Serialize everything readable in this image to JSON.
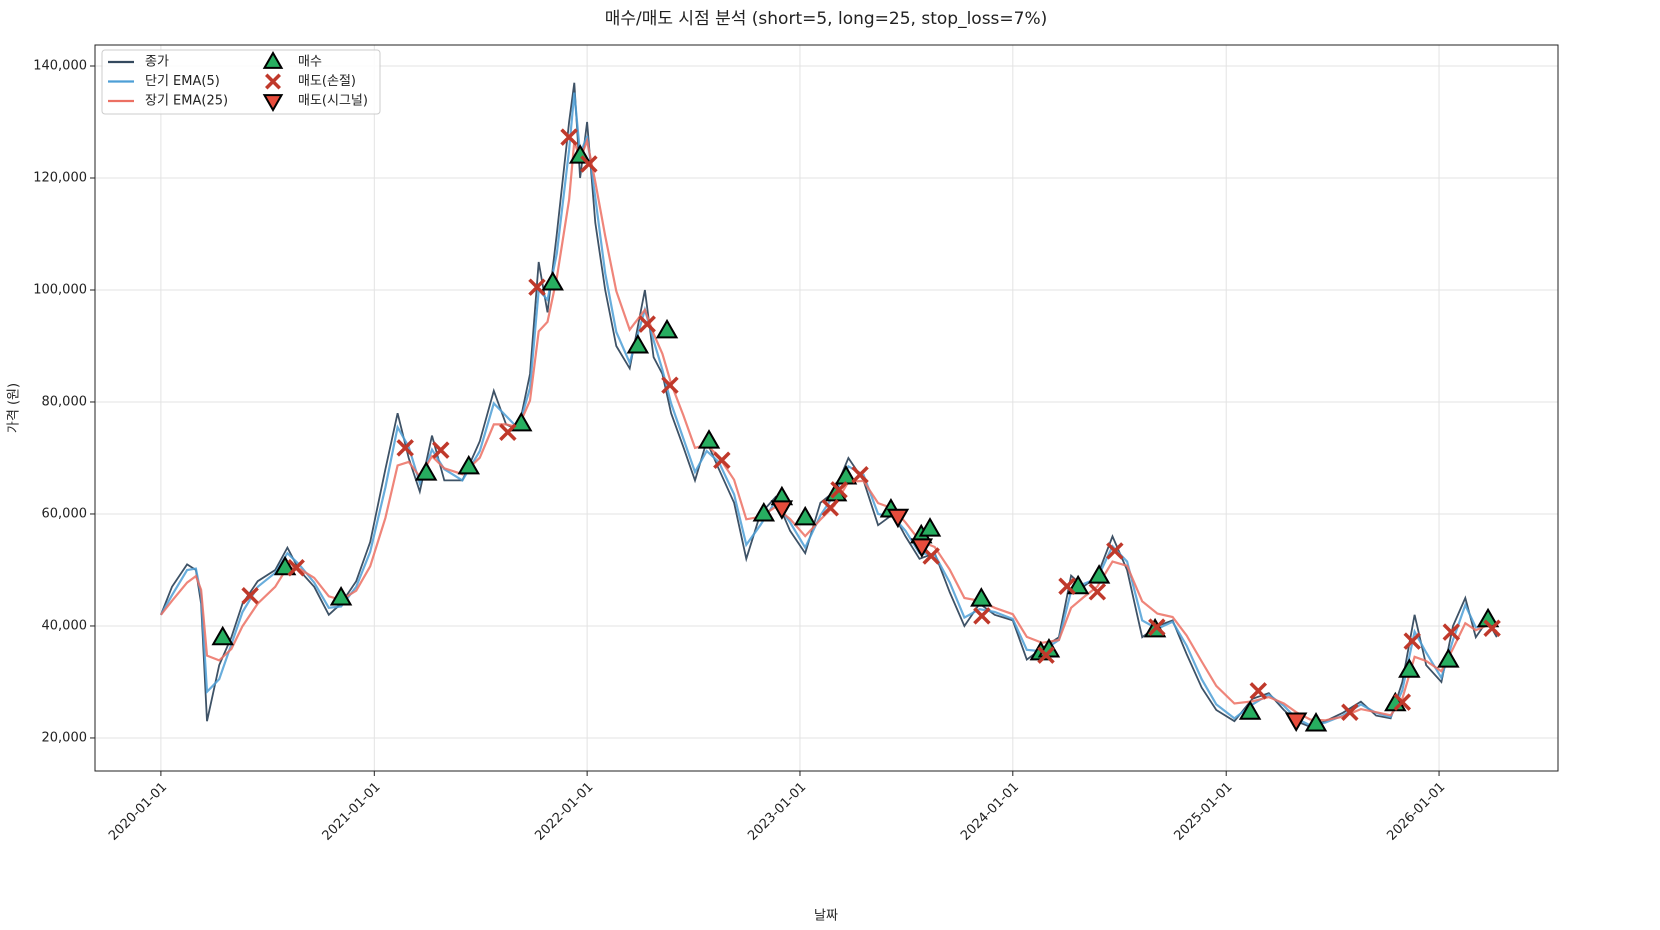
{
  "chart_data": {
    "type": "line",
    "title": "매수/매도 시점 분석 (short=5, long=25, stop_loss=7%)",
    "x_label": "날짜",
    "y_label": "가격 (원)",
    "xlim": [
      "2019-09-10",
      "2026-07-24"
    ],
    "xticks": [
      "2020-01-01",
      "2021-01-01",
      "2022-01-01",
      "2023-01-01",
      "2024-01-01",
      "2025-01-01",
      "2026-01-01"
    ],
    "ylim": [
      14100,
      143750
    ],
    "yticks": [
      {
        "value": 20000,
        "label": "20,000"
      },
      {
        "value": 40000,
        "label": "40,000"
      },
      {
        "value": 60000,
        "label": "60,000"
      },
      {
        "value": 80000,
        "label": "80,000"
      },
      {
        "value": 100000,
        "label": "100,000"
      },
      {
        "value": 120000,
        "label": "120,000"
      },
      {
        "value": 140000,
        "label": "140,000"
      }
    ],
    "grid": true,
    "legend": "upper left",
    "x": [
      "2020-01-01",
      "2020-01-20",
      "2020-02-15",
      "2020-03-01",
      "2020-03-10",
      "2020-03-20",
      "2020-04-10",
      "2020-05-01",
      "2020-05-20",
      "2020-06-15",
      "2020-07-15",
      "2020-08-05",
      "2020-08-25",
      "2020-09-20",
      "2020-10-15",
      "2020-11-05",
      "2020-12-01",
      "2020-12-25",
      "2021-01-20",
      "2021-02-10",
      "2021-03-01",
      "2021-03-20",
      "2021-04-10",
      "2021-05-01",
      "2021-06-01",
      "2021-07-01",
      "2021-07-25",
      "2021-08-15",
      "2021-09-05",
      "2021-09-25",
      "2021-10-10",
      "2021-10-25",
      "2021-11-10",
      "2021-12-01",
      "2021-12-10",
      "2021-12-20",
      "2022-01-01",
      "2022-01-15",
      "2022-02-01",
      "2022-02-20",
      "2022-03-15",
      "2022-04-10",
      "2022-04-25",
      "2022-05-10",
      "2022-05-25",
      "2022-06-15",
      "2022-07-05",
      "2022-07-25",
      "2022-08-15",
      "2022-09-10",
      "2022-10-01",
      "2022-10-25",
      "2022-11-20",
      "2022-12-15",
      "2023-01-10",
      "2023-02-05",
      "2023-03-01",
      "2023-03-25",
      "2023-04-20",
      "2023-05-15",
      "2023-06-10",
      "2023-07-01",
      "2023-07-25",
      "2023-08-20",
      "2023-09-15",
      "2023-10-10",
      "2023-11-05",
      "2023-12-01",
      "2024-01-01",
      "2024-01-25",
      "2024-02-20",
      "2024-03-20",
      "2024-04-10",
      "2024-05-01",
      "2024-05-25",
      "2024-06-20",
      "2024-07-15",
      "2024-08-10",
      "2024-09-05",
      "2024-10-01",
      "2024-10-25",
      "2024-11-20",
      "2024-12-15",
      "2025-01-15",
      "2025-02-15",
      "2025-03-15",
      "2025-04-10",
      "2025-05-01",
      "2025-05-25",
      "2025-06-20",
      "2025-07-20",
      "2025-08-20",
      "2025-09-15",
      "2025-10-10",
      "2025-10-30",
      "2025-11-20",
      "2025-12-10",
      "2026-01-05",
      "2026-01-25",
      "2026-02-15",
      "2026-03-05",
      "2026-03-25",
      "2026-04-10"
    ],
    "series": [
      {
        "name": "종가",
        "style": "line",
        "color": "#34495e",
        "values": [
          42000,
          47000,
          51000,
          50000,
          44000,
          23000,
          33000,
          38000,
          44000,
          48000,
          50000,
          54000,
          50000,
          47000,
          42000,
          44000,
          48000,
          55000,
          68000,
          78000,
          70000,
          64000,
          74000,
          66000,
          66000,
          73000,
          82000,
          76000,
          75000,
          85000,
          105000,
          96000,
          110000,
          130000,
          137000,
          120000,
          130000,
          112000,
          100000,
          90000,
          86000,
          100000,
          88000,
          85000,
          78000,
          72000,
          66000,
          73000,
          68000,
          62000,
          52000,
          60000,
          63000,
          57000,
          53000,
          62000,
          64000,
          70000,
          66000,
          58000,
          60000,
          56000,
          52000,
          53000,
          46000,
          40000,
          44000,
          42000,
          41000,
          34000,
          36000,
          38000,
          49000,
          47000,
          49000,
          56000,
          50000,
          38000,
          40000,
          41000,
          35000,
          29000,
          25000,
          23000,
          27000,
          28000,
          25000,
          23000,
          22000,
          23000,
          24500,
          26500,
          24000,
          23500,
          30000,
          42000,
          33000,
          30000,
          40000,
          45000,
          38000,
          41000,
          38000
        ]
      },
      {
        "name": "단기 EMA(5)",
        "style": "line",
        "color": "#4d9fd6",
        "values": [
          42000,
          45500,
          50000,
          50250,
          45500,
          28250,
          30500,
          36750,
          42500,
          47000,
          49500,
          53000,
          51000,
          47750,
          43250,
          43500,
          47000,
          53250,
          64750,
          75500,
          72000,
          65500,
          71500,
          68000,
          66000,
          71250,
          79750,
          77500,
          75250,
          82500,
          100000,
          98250,
          106500,
          125000,
          135250,
          124250,
          127500,
          116500,
          103000,
          92500,
          87000,
          96500,
          91000,
          85750,
          79750,
          73500,
          67500,
          71250,
          69250,
          63500,
          54500,
          58000,
          62250,
          58500,
          54000,
          59750,
          63500,
          68500,
          67000,
          60000,
          59500,
          57000,
          53000,
          52750,
          47750,
          41500,
          43000,
          42500,
          41250,
          35750,
          35500,
          37500,
          46250,
          47500,
          48500,
          54250,
          51500,
          41000,
          39500,
          40750,
          36500,
          30500,
          26000,
          23500,
          26000,
          27750,
          25750,
          23500,
          22250,
          22750,
          24000,
          26000,
          24500,
          23750,
          28500,
          39000,
          35250,
          30750,
          37500,
          43750,
          39750,
          40250,
          38750
        ]
      },
      {
        "name": "장기 EMA(25)",
        "style": "line",
        "color": "#ec7063",
        "values": [
          42000,
          44500,
          47750,
          48900,
          46450,
          34700,
          33850,
          35900,
          39950,
          44000,
          47000,
          50500,
          50250,
          48600,
          45300,
          44650,
          46300,
          50650,
          59300,
          68650,
          69300,
          66650,
          70300,
          68150,
          67100,
          70050,
          76000,
          76000,
          75500,
          80250,
          92600,
          94300,
          102150,
          116100,
          126550,
          123300,
          126650,
          119300,
          109650,
          99800,
          92900,
          96450,
          92200,
          88600,
          83300,
          77650,
          71800,
          72400,
          70200,
          66100,
          59050,
          59500,
          61250,
          59100,
          56050,
          59000,
          61500,
          65750,
          65900,
          61950,
          60950,
          58500,
          55250,
          54100,
          50050,
          45000,
          44500,
          43250,
          42100,
          38050,
          37000,
          37500,
          43250,
          45100,
          47050,
          51500,
          50750,
          44400,
          42200,
          41600,
          38300,
          33650,
          29300,
          26150,
          26550,
          27300,
          26150,
          24600,
          23300,
          23150,
          23800,
          25150,
          24600,
          24050,
          27000,
          34500,
          33750,
          31900,
          35950,
          40500,
          39250,
          40100,
          39050
        ]
      },
      {
        "name": "매수",
        "style": "triangle-up",
        "color": "#27ae60",
        "x": [
          "2020-04-16",
          "2020-08-01",
          "2020-11-05",
          "2021-03-31",
          "2021-06-12",
          "2021-09-10",
          "2021-11-03",
          "2021-12-20",
          "2022-03-29",
          "2022-05-18",
          "2022-07-29",
          "2022-10-31",
          "2022-12-01",
          "2023-01-10",
          "2023-03-04",
          "2023-03-21",
          "2023-06-06",
          "2023-07-28",
          "2023-08-12",
          "2023-11-08",
          "2024-02-18",
          "2024-03-03",
          "2024-04-22",
          "2024-05-28",
          "2024-09-01",
          "2025-02-11",
          "2025-06-04",
          "2025-10-18",
          "2025-11-11",
          "2026-01-17",
          "2026-03-26"
        ],
        "values": [
          37900,
          50400,
          45000,
          67300,
          68400,
          76100,
          101250,
          123900,
          90000,
          92700,
          73000,
          60000,
          62900,
          59300,
          63600,
          66600,
          60700,
          56100,
          57300,
          44800,
          35200,
          35700,
          47000,
          48900,
          39300,
          24600,
          22500,
          26100,
          32100,
          33900,
          41100
        ]
      },
      {
        "name": "매도(손절)",
        "style": "x",
        "color": "#c0392b",
        "x": [
          "2020-06-02",
          "2020-08-20",
          "2021-02-23",
          "2021-04-25",
          "2021-08-18",
          "2021-10-07",
          "2021-12-01",
          "2022-01-04",
          "2022-04-14",
          "2022-05-23",
          "2022-08-20",
          "2023-02-22",
          "2023-03-09",
          "2023-04-14",
          "2023-08-14",
          "2023-11-09",
          "2024-02-27",
          "2024-04-03",
          "2024-05-25",
          "2024-06-24",
          "2024-09-04",
          "2025-02-25",
          "2025-08-01",
          "2025-10-30",
          "2025-11-16",
          "2026-01-22",
          "2026-04-02"
        ],
        "values": [
          45400,
          50400,
          71800,
          71400,
          74600,
          100500,
          127300,
          122500,
          93900,
          83000,
          69600,
          61100,
          64300,
          67000,
          52500,
          41800,
          34800,
          47100,
          46100,
          53400,
          39800,
          28400,
          24600,
          26400,
          37300,
          38900,
          39600
        ]
      },
      {
        "name": "매도(시그널)",
        "style": "triangle-down",
        "color": "#e74c3c",
        "x": [
          "2022-12-01",
          "2023-06-18",
          "2023-07-29",
          "2025-05-01"
        ],
        "values": [
          61100,
          59600,
          54300,
          23200
        ]
      }
    ]
  }
}
